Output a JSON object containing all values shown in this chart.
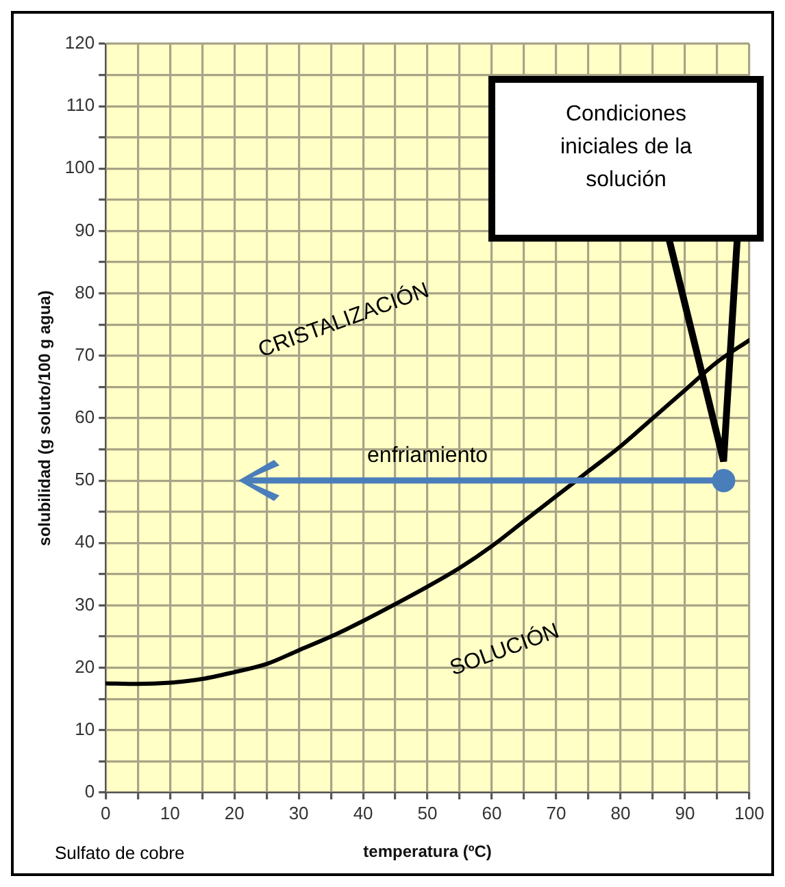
{
  "chart_data": {
    "type": "line",
    "xlabel": "temperatura (ºC)",
    "ylabel": "solubilidad (g soluto/100 g agua)",
    "xlim": [
      0,
      100
    ],
    "ylim": [
      0,
      120
    ],
    "xticks": [
      0,
      {
        "value": 5,
        "label": null
      },
      10,
      {
        "value": 15,
        "label": null
      },
      20,
      {
        "value": 25,
        "label": null
      },
      30,
      {
        "value": 35,
        "label": null
      },
      40,
      {
        "value": 45,
        "label": null
      },
      50,
      {
        "value": 55,
        "label": null
      },
      60,
      {
        "value": 65,
        "label": null
      },
      70,
      {
        "value": 75,
        "label": null
      },
      80,
      {
        "value": 85,
        "label": null
      },
      90,
      {
        "value": 95,
        "label": null
      },
      100
    ],
    "yticks": [
      0,
      {
        "value": 5,
        "label": null
      },
      10,
      {
        "value": 15,
        "label": null
      },
      20,
      {
        "value": 25,
        "label": null
      },
      30,
      {
        "value": 35,
        "label": null
      },
      40,
      {
        "value": 45,
        "label": null
      },
      50,
      {
        "value": 55,
        "label": null
      },
      60,
      {
        "value": 65,
        "label": null
      },
      70,
      {
        "value": 75,
        "label": null
      },
      80,
      {
        "value": 85,
        "label": null
      },
      90,
      {
        "value": 95,
        "label": null
      },
      100,
      {
        "value": 105,
        "label": null
      },
      110,
      {
        "value": 115,
        "label": null
      },
      120
    ],
    "grid": true,
    "legend": false,
    "line_style": "solid",
    "series": [
      {
        "color": "#000000",
        "x": [
          0,
          5,
          10,
          15,
          20,
          25,
          30,
          35,
          40,
          45,
          50,
          55,
          60,
          65,
          70,
          75,
          80,
          85,
          90,
          95,
          100
        ],
        "values": [
          17.5,
          17.4,
          17.6,
          18.2,
          19.3,
          20.6,
          22.8,
          25,
          27.5,
          30.2,
          33,
          36,
          39.5,
          43.5,
          47.5,
          51.5,
          55.5,
          60,
          64.5,
          69,
          72.5
        ]
      },
      {
        "type": "scatter",
        "color": "#4a7ebb",
        "marker": "circle",
        "x": [
          96
        ],
        "values": [
          50
        ]
      }
    ],
    "annotations": [
      "CRISTALIZACIÓN",
      "SOLUCIÓN",
      "enfriamiento",
      "Sulfato de cobre",
      "Condiciones iniciales de la solución"
    ]
  }
}
